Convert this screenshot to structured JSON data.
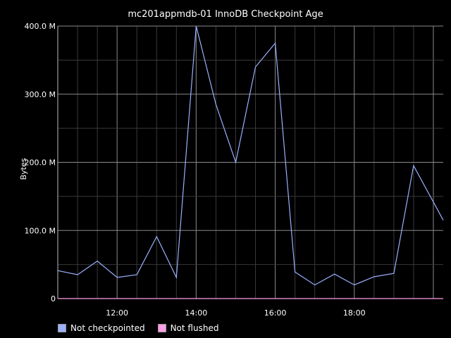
{
  "chart_data": {
    "type": "line",
    "title": "mc201appmdb-01 InnoDB Checkpoint Age",
    "ylabel": "Bytes",
    "xlabel": "",
    "ylim": [
      0,
      400000000
    ],
    "y_ticks": [
      {
        "value": 0,
        "label": "0"
      },
      {
        "value": 100000000,
        "label": "100.0 M"
      },
      {
        "value": 200000000,
        "label": "200.0 M"
      },
      {
        "value": 300000000,
        "label": "300.0 M"
      },
      {
        "value": 400000000,
        "label": "400.0 M"
      }
    ],
    "xlim": [
      "10:30",
      "20:15"
    ],
    "x_ticks": [
      "12:00",
      "14:00",
      "16:00",
      "18:00"
    ],
    "grid": true,
    "legend_position": "bottom-left",
    "x": [
      "10:30",
      "11:00",
      "11:30",
      "12:00",
      "12:30",
      "13:00",
      "13:30",
      "14:00",
      "14:30",
      "15:00",
      "15:30",
      "16:00",
      "16:30",
      "17:00",
      "17:30",
      "18:00",
      "18:30",
      "19:00",
      "19:30",
      "20:15"
    ],
    "series": [
      {
        "name": "Not checkpointed",
        "color": "#9AB0FF",
        "values": [
          41000000,
          35000000,
          55000000,
          31000000,
          35000000,
          91000000,
          31000000,
          400000000,
          285000000,
          200000000,
          340000000,
          375000000,
          39000000,
          20000000,
          36000000,
          20000000,
          32000000,
          37000000,
          195000000,
          115000000
        ]
      },
      {
        "name": "Not flushed",
        "color": "#FF9EE6",
        "values": [
          0,
          0,
          0,
          0,
          0,
          0,
          0,
          0,
          0,
          0,
          0,
          0,
          0,
          0,
          0,
          0,
          0,
          0,
          0,
          0
        ]
      }
    ]
  }
}
